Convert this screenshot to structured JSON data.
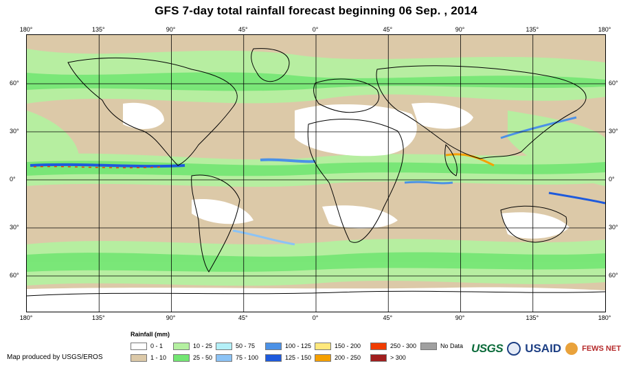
{
  "title": "GFS 7-day total rainfall forecast beginning 06 Sep. , 2014",
  "lon_labels_top": [
    "180°",
    "135°",
    "90°",
    "45°",
    "0°",
    "45°",
    "90°",
    "135°",
    "180°"
  ],
  "lon_labels_bottom": [
    "180°",
    "135°",
    "90°",
    "45°",
    "0°",
    "45°",
    "90°",
    "135°",
    "180°"
  ],
  "lat_labels_left": [
    "60°",
    "30°",
    "0°",
    "30°",
    "60°"
  ],
  "lat_labels_right": [
    "60°",
    "30°",
    "0°",
    "30°",
    "60°"
  ],
  "legend": {
    "title": "Rainfall (mm)",
    "items": [
      {
        "label": "0 - 1",
        "color": "#ffffff"
      },
      {
        "label": "1 - 10",
        "color": "#dcc9a8"
      },
      {
        "label": "10 - 25",
        "color": "#b4f0a0"
      },
      {
        "label": "25 - 50",
        "color": "#73e673"
      },
      {
        "label": "50 - 75",
        "color": "#b4f0f8"
      },
      {
        "label": "75 - 100",
        "color": "#8cc3f5"
      },
      {
        "label": "100 - 125",
        "color": "#4b91e6"
      },
      {
        "label": "125 - 150",
        "color": "#1e5adc"
      },
      {
        "label": "150 - 200",
        "color": "#ffe87c"
      },
      {
        "label": "200 - 250",
        "color": "#f5a000"
      },
      {
        "label": "250 - 300",
        "color": "#f03c00"
      },
      {
        "label": "> 300",
        "color": "#a01e1e"
      },
      {
        "label": "No Data",
        "color": "#a0a0a0"
      }
    ]
  },
  "credit": "Map produced by USGS/EROS",
  "logos": {
    "usgs": "USGS",
    "usaid": "USAID",
    "fews": "FEWS NET"
  }
}
